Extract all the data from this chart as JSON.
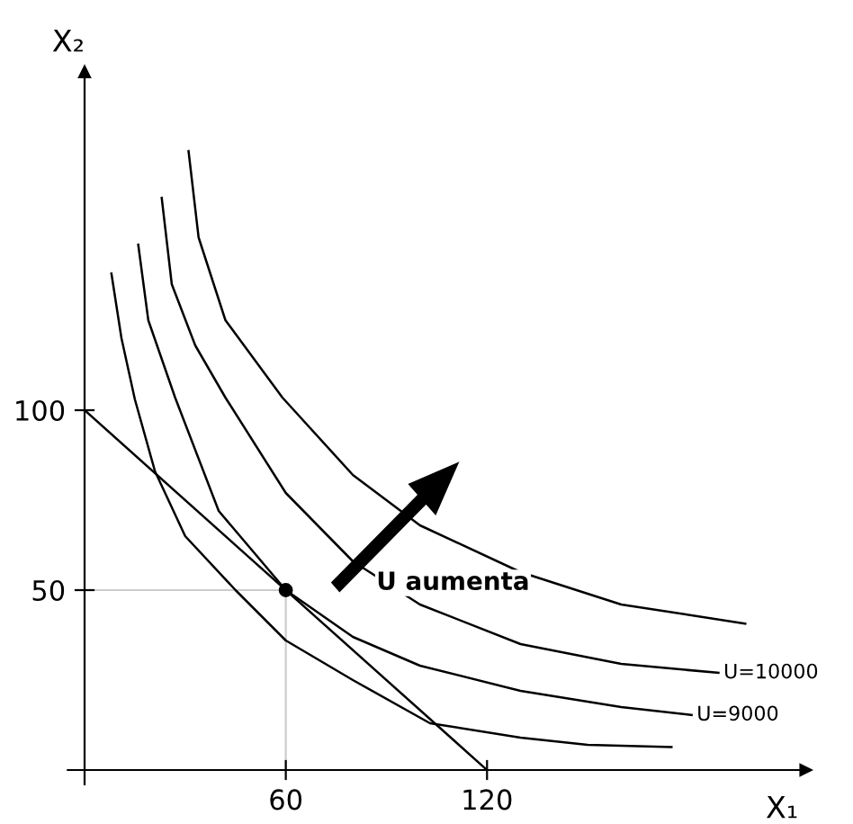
{
  "chart_data": {
    "type": "line",
    "xlabel": "X₁",
    "ylabel": "X₂",
    "xlim": [
      -5,
      215
    ],
    "ylim": [
      -4,
      194
    ],
    "xticks": [
      60,
      120
    ],
    "yticks": [
      50,
      100
    ],
    "grid": false,
    "legend": false,
    "marker": "none",
    "line_style": "solid",
    "series": [
      {
        "color": "#000000",
        "x": [
          8,
          11,
          15,
          21,
          30,
          45,
          60,
          80,
          103,
          130,
          150,
          175
        ],
        "values": [
          138,
          120,
          103,
          83,
          65,
          50,
          36,
          25,
          13,
          9,
          7,
          6.4
        ]
      },
      {
        "name": "U=9000",
        "color": "#000000",
        "x": [
          16,
          19,
          27,
          40,
          60,
          80,
          100,
          130,
          160,
          181
        ],
        "values": [
          146,
          125,
          103.5,
          72,
          50,
          37,
          29,
          22,
          17.5,
          15.3
        ]
      },
      {
        "name": "U=10000",
        "color": "#000000",
        "x": [
          23,
          26,
          33,
          42,
          60,
          80,
          100,
          130,
          160,
          189
        ],
        "values": [
          159,
          135,
          118,
          103.5,
          77,
          58,
          46,
          35,
          29.5,
          27
        ]
      },
      {
        "color": "#000000",
        "x": [
          31,
          34,
          42,
          59,
          80,
          100,
          130,
          160,
          197
        ],
        "values": [
          172,
          148,
          125,
          103.5,
          82,
          68,
          55,
          46,
          40.7
        ]
      },
      {
        "type": "line",
        "color": "#000000",
        "x": [
          0,
          120
        ],
        "values": [
          100,
          0
        ]
      },
      {
        "type": "scatter",
        "color": "#000000",
        "marker": "circle",
        "x": [
          60
        ],
        "values": [
          50
        ]
      }
    ],
    "ref_lines": [
      {
        "axis": "x",
        "value": 60,
        "color": "#cccccc"
      },
      {
        "axis": "y",
        "value": 50,
        "color": "#cccccc"
      }
    ],
    "annotations": [
      {
        "text": "U aumenta",
        "x": 87,
        "y": 52
      }
    ]
  }
}
